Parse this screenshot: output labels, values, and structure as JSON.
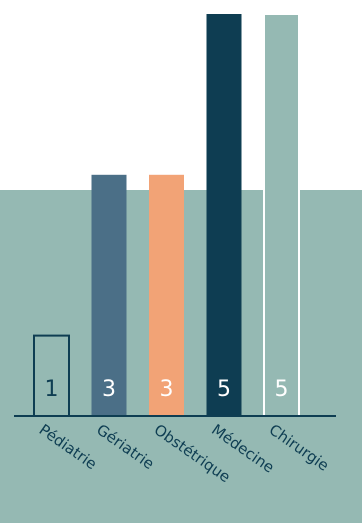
{
  "chart_data": {
    "type": "bar",
    "categories": [
      "Pédiatrie",
      "Gériatrie",
      "Obstétrique",
      "Médecine",
      "Chirurgie"
    ],
    "values": [
      1,
      3,
      3,
      5,
      5
    ],
    "data_labels": [
      "1",
      "3",
      "3",
      "5",
      "5"
    ],
    "bar_styles": [
      {
        "fill": "none",
        "stroke": "#0e3d52",
        "label_color": "#0e3d52"
      },
      {
        "fill": "#4b6f87",
        "stroke": "none",
        "label_color": "#ffffff"
      },
      {
        "fill": "#f2a376",
        "stroke": "none",
        "label_color": "#ffffff"
      },
      {
        "fill": "#0e3d52",
        "stroke": "none",
        "label_color": "#ffffff"
      },
      {
        "fill": "#95b9b3",
        "stroke": "#ffffff",
        "label_color": "#ffffff"
      }
    ],
    "ylim": [
      0,
      5
    ],
    "grid": false,
    "legend": "none",
    "colors": {
      "panel": "#95b9b3",
      "axis": "#0e3d52",
      "tick_label": "#0e3d52",
      "background": "#ffffff"
    }
  }
}
